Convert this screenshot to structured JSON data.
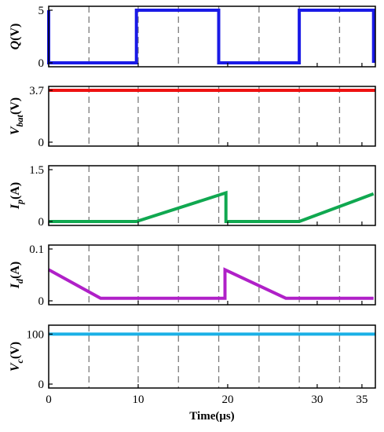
{
  "chart_data": {
    "type": "line",
    "x_axis": {
      "label": "Time(μs)",
      "ticks": [
        0,
        10,
        20,
        30,
        35
      ],
      "xlim": [
        0,
        36.5
      ],
      "dashed_gridlines": [
        4.5,
        10,
        14.5,
        19,
        23.5,
        28,
        32.5
      ]
    },
    "panels": [
      {
        "ylabel_main": "Q",
        "ylabel_sub": "",
        "ylabel_unit": "(V)",
        "yticks": [
          "0",
          "5"
        ],
        "ylim": [
          0,
          5
        ],
        "color": "#1a1ae6",
        "points": [
          [
            0,
            5
          ],
          [
            0,
            0
          ],
          [
            9.8,
            0
          ],
          [
            9.8,
            5
          ],
          [
            19,
            5
          ],
          [
            19,
            0
          ],
          [
            28,
            0
          ],
          [
            28,
            5
          ],
          [
            36.3,
            5
          ],
          [
            36.3,
            0
          ]
        ]
      },
      {
        "ylabel_main": "V",
        "ylabel_sub": "bat",
        "ylabel_unit": "(V)",
        "yticks": [
          "0",
          "3.7"
        ],
        "ylim": [
          0,
          3.7
        ],
        "color": "#ee1111",
        "points": [
          [
            0,
            3.7
          ],
          [
            36.5,
            3.7
          ]
        ]
      },
      {
        "ylabel_main": "I",
        "ylabel_sub": "p",
        "ylabel_unit": "(A)",
        "yticks": [
          "0",
          "1.5"
        ],
        "ylim": [
          0,
          1.5
        ],
        "color": "#10a850",
        "points": [
          [
            0,
            0
          ],
          [
            9.8,
            0
          ],
          [
            19.8,
            0.83
          ],
          [
            19.8,
            0
          ],
          [
            28,
            0
          ],
          [
            36.3,
            0.8
          ],
          [
            36.3,
            0.8
          ]
        ]
      },
      {
        "ylabel_main": "I",
        "ylabel_sub": "d",
        "ylabel_unit": "(A)",
        "yticks": [
          "0",
          "0.1"
        ],
        "ylim": [
          0,
          0.1
        ],
        "color": "#b020c8",
        "points": [
          [
            0,
            0.06
          ],
          [
            5.8,
            0.005
          ],
          [
            19.7,
            0.005
          ],
          [
            19.7,
            0.06
          ],
          [
            26.5,
            0.005
          ],
          [
            36.3,
            0.005
          ]
        ]
      },
      {
        "ylabel_main": "V",
        "ylabel_sub": "c",
        "ylabel_unit": "(V)",
        "yticks": [
          "0",
          "100"
        ],
        "ylim": [
          0,
          110
        ],
        "color": "#1ab0e6",
        "points": [
          [
            0,
            100
          ],
          [
            36.5,
            100
          ]
        ]
      }
    ]
  }
}
